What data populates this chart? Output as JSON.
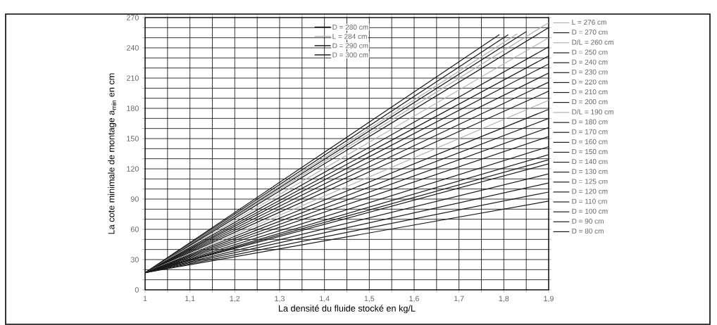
{
  "chart_data": {
    "type": "line",
    "xlabel": "La densité du fluide stocké en kg/L",
    "ylabel": "La cote minimale de montage a$_{min}$ en cm",
    "x": [
      1,
      1.9
    ],
    "xlim": [
      1,
      1.9
    ],
    "ylim": [
      0,
      270
    ],
    "xticks": [
      1,
      {
        "value": 1.05,
        "label": null
      },
      {
        "value": 1.1,
        "label": "1,1"
      },
      {
        "value": 1.15,
        "label": null
      },
      {
        "value": 1.2,
        "label": "1,2"
      },
      {
        "value": 1.25,
        "label": null
      },
      {
        "value": 1.3,
        "label": "1,3"
      },
      {
        "value": 1.35,
        "label": null
      },
      {
        "value": 1.4,
        "label": "1,4"
      },
      {
        "value": 1.45,
        "label": null
      },
      {
        "value": 1.5,
        "label": "1,5"
      },
      {
        "value": 1.55,
        "label": null
      },
      {
        "value": 1.6,
        "label": "1,6"
      },
      {
        "value": 1.65,
        "label": null
      },
      {
        "value": 1.7,
        "label": "1,7"
      },
      {
        "value": 1.75,
        "label": null
      },
      {
        "value": 1.8,
        "label": "1,8"
      },
      {
        "value": 1.85,
        "label": null
      },
      {
        "value": 1.9,
        "label": "1,9"
      }
    ],
    "yticks": [
      0,
      {
        "value": 10,
        "label": null
      },
      {
        "value": 20,
        "label": null
      },
      30,
      {
        "value": 40,
        "label": null
      },
      {
        "value": 50,
        "label": null
      },
      60,
      {
        "value": 70,
        "label": null
      },
      {
        "value": 80,
        "label": null
      },
      90,
      {
        "value": 100,
        "label": null
      },
      {
        "value": 110,
        "label": null
      },
      120,
      {
        "value": 130,
        "label": null
      },
      {
        "value": 140,
        "label": null
      },
      150,
      {
        "value": 160,
        "label": null
      },
      {
        "value": 170,
        "label": null
      },
      180,
      {
        "value": 190,
        "label": null
      },
      {
        "value": 200,
        "label": null
      },
      210,
      {
        "value": 220,
        "label": null
      },
      {
        "value": 230,
        "label": null
      },
      240,
      {
        "value": 250,
        "label": null
      },
      {
        "value": 260,
        "label": null
      },
      270
    ],
    "grid": true,
    "legend": "right",
    "marker": "none",
    "line_style": "solid",
    "series": [
      {
        "name": "L = 276 cm",
        "color": "#b0b0b0",
        "values": [
          17,
          265
        ]
      },
      {
        "name": "D = 270 cm",
        "color": "#1a1a1a",
        "values": [
          17,
          260
        ]
      },
      {
        "name": "D/L = 260 cm",
        "color": "#b0b0b0",
        "values": [
          17,
          250
        ]
      },
      {
        "name": "D = 250 cm",
        "color": "#1a1a1a",
        "values": [
          17,
          241
        ]
      },
      {
        "name": "D = 240 cm",
        "color": "#1a1a1a",
        "values": [
          17,
          232
        ]
      },
      {
        "name": "D = 230 cm",
        "color": "#1a1a1a",
        "values": [
          17,
          224
        ]
      },
      {
        "name": "D = 220 cm",
        "color": "#1a1a1a",
        "values": [
          17,
          215
        ]
      },
      {
        "name": "D = 210 cm",
        "color": "#1a1a1a",
        "values": [
          17,
          206
        ]
      },
      {
        "name": "D = 200 cm",
        "color": "#1a1a1a",
        "values": [
          17,
          197
        ]
      },
      {
        "name": "D/L = 190 cm",
        "color": "#b0b0b0",
        "values": [
          17,
          188
        ]
      },
      {
        "name": "D = 180 cm",
        "color": "#1a1a1a",
        "values": [
          17,
          179
        ]
      },
      {
        "name": "D = 170 cm",
        "color": "#1a1a1a",
        "values": [
          17,
          170
        ]
      },
      {
        "name": "D = 160 cm",
        "color": "#1a1a1a",
        "values": [
          17,
          161
        ]
      },
      {
        "name": "D = 150 cm",
        "color": "#1a1a1a",
        "values": [
          17,
          152
        ]
      },
      {
        "name": "D = 140 cm",
        "color": "#1a1a1a",
        "values": [
          17,
          142
        ]
      },
      {
        "name": "D = 130 cm",
        "color": "#1a1a1a",
        "values": [
          17,
          134
        ]
      },
      {
        "name": "D = 125 cm",
        "color": "#1a1a1a",
        "values": [
          17,
          129
        ]
      },
      {
        "name": "D = 120 cm",
        "color": "#1a1a1a",
        "values": [
          17,
          125
        ]
      },
      {
        "name": "D = 110 cm",
        "color": "#1a1a1a",
        "values": [
          17,
          115
        ]
      },
      {
        "name": "D = 100 cm",
        "color": "#1a1a1a",
        "values": [
          17,
          106
        ]
      },
      {
        "name": "D = 90 cm",
        "color": "#1a1a1a",
        "values": [
          17,
          97
        ]
      },
      {
        "name": "D = 80 cm",
        "color": "#1a1a1a",
        "values": [
          17,
          88
        ]
      },
      {
        "name": "D = 280 cm",
        "color": "#1a1a1a",
        "x": [
          1,
          1.85
        ],
        "values": [
          17,
          256
        ]
      },
      {
        "name": "L = 284 cm",
        "color": "#b0b0b0",
        "x": [
          1,
          1.83
        ],
        "values": [
          17,
          254
        ]
      },
      {
        "name": "D = 290 cm",
        "color": "#1a1a1a",
        "x": [
          1,
          1.81
        ],
        "values": [
          17,
          253
        ]
      },
      {
        "name": "D = 300 cm",
        "color": "#1a1a1a",
        "x": [
          1,
          1.79
        ],
        "values": [
          17,
          253
        ]
      }
    ]
  }
}
